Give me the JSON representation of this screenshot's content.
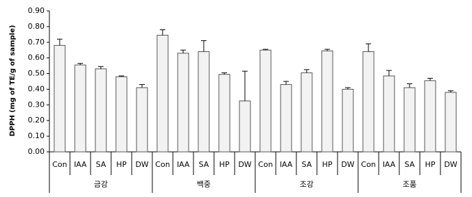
{
  "chart_data": {
    "type": "bar",
    "y_label": "DPPH (mg of TE/g of sample)",
    "color": "#f2f2f2",
    "ylim": [
      0,
      0.9
    ],
    "yticks": [
      {
        "value": 0,
        "label": "0.00"
      },
      {
        "value": 0.1,
        "label": "0.10"
      },
      {
        "value": 0.2,
        "label": "0.20"
      },
      {
        "value": 0.3,
        "label": "0.30"
      },
      {
        "value": 0.4,
        "label": "0.40"
      },
      {
        "value": 0.5,
        "label": "0.50"
      },
      {
        "value": 0.6,
        "label": "0.60"
      },
      {
        "value": 0.7,
        "label": "0.70"
      },
      {
        "value": 0.8,
        "label": "0.80"
      },
      {
        "value": 0.9,
        "label": "0.90"
      }
    ],
    "groups": [
      {
        "name": "금강",
        "categories": [
          "Con",
          "IAA",
          "SA",
          "HP",
          "DW"
        ],
        "values": [
          0.68,
          0.555,
          0.53,
          0.48,
          0.41
        ],
        "errors": [
          0.04,
          0.01,
          0.015,
          0.005,
          0.02
        ]
      },
      {
        "name": "백중",
        "categories": [
          "Con",
          "IAA",
          "SA",
          "HP",
          "DW"
        ],
        "values": [
          0.745,
          0.63,
          0.64,
          0.495,
          0.325
        ],
        "errors": [
          0.035,
          0.02,
          0.07,
          0.01,
          0.19
        ]
      },
      {
        "name": "조강",
        "categories": [
          "Con",
          "IAA",
          "SA",
          "HP",
          "DW"
        ],
        "values": [
          0.65,
          0.43,
          0.505,
          0.645,
          0.4
        ],
        "errors": [
          0.005,
          0.02,
          0.02,
          0.01,
          0.01
        ]
      },
      {
        "name": "조품",
        "categories": [
          "Con",
          "IAA",
          "SA",
          "HP",
          "DW"
        ],
        "values": [
          0.64,
          0.485,
          0.41,
          0.455,
          0.38
        ],
        "errors": [
          0.05,
          0.035,
          0.025,
          0.015,
          0.01
        ]
      }
    ]
  }
}
